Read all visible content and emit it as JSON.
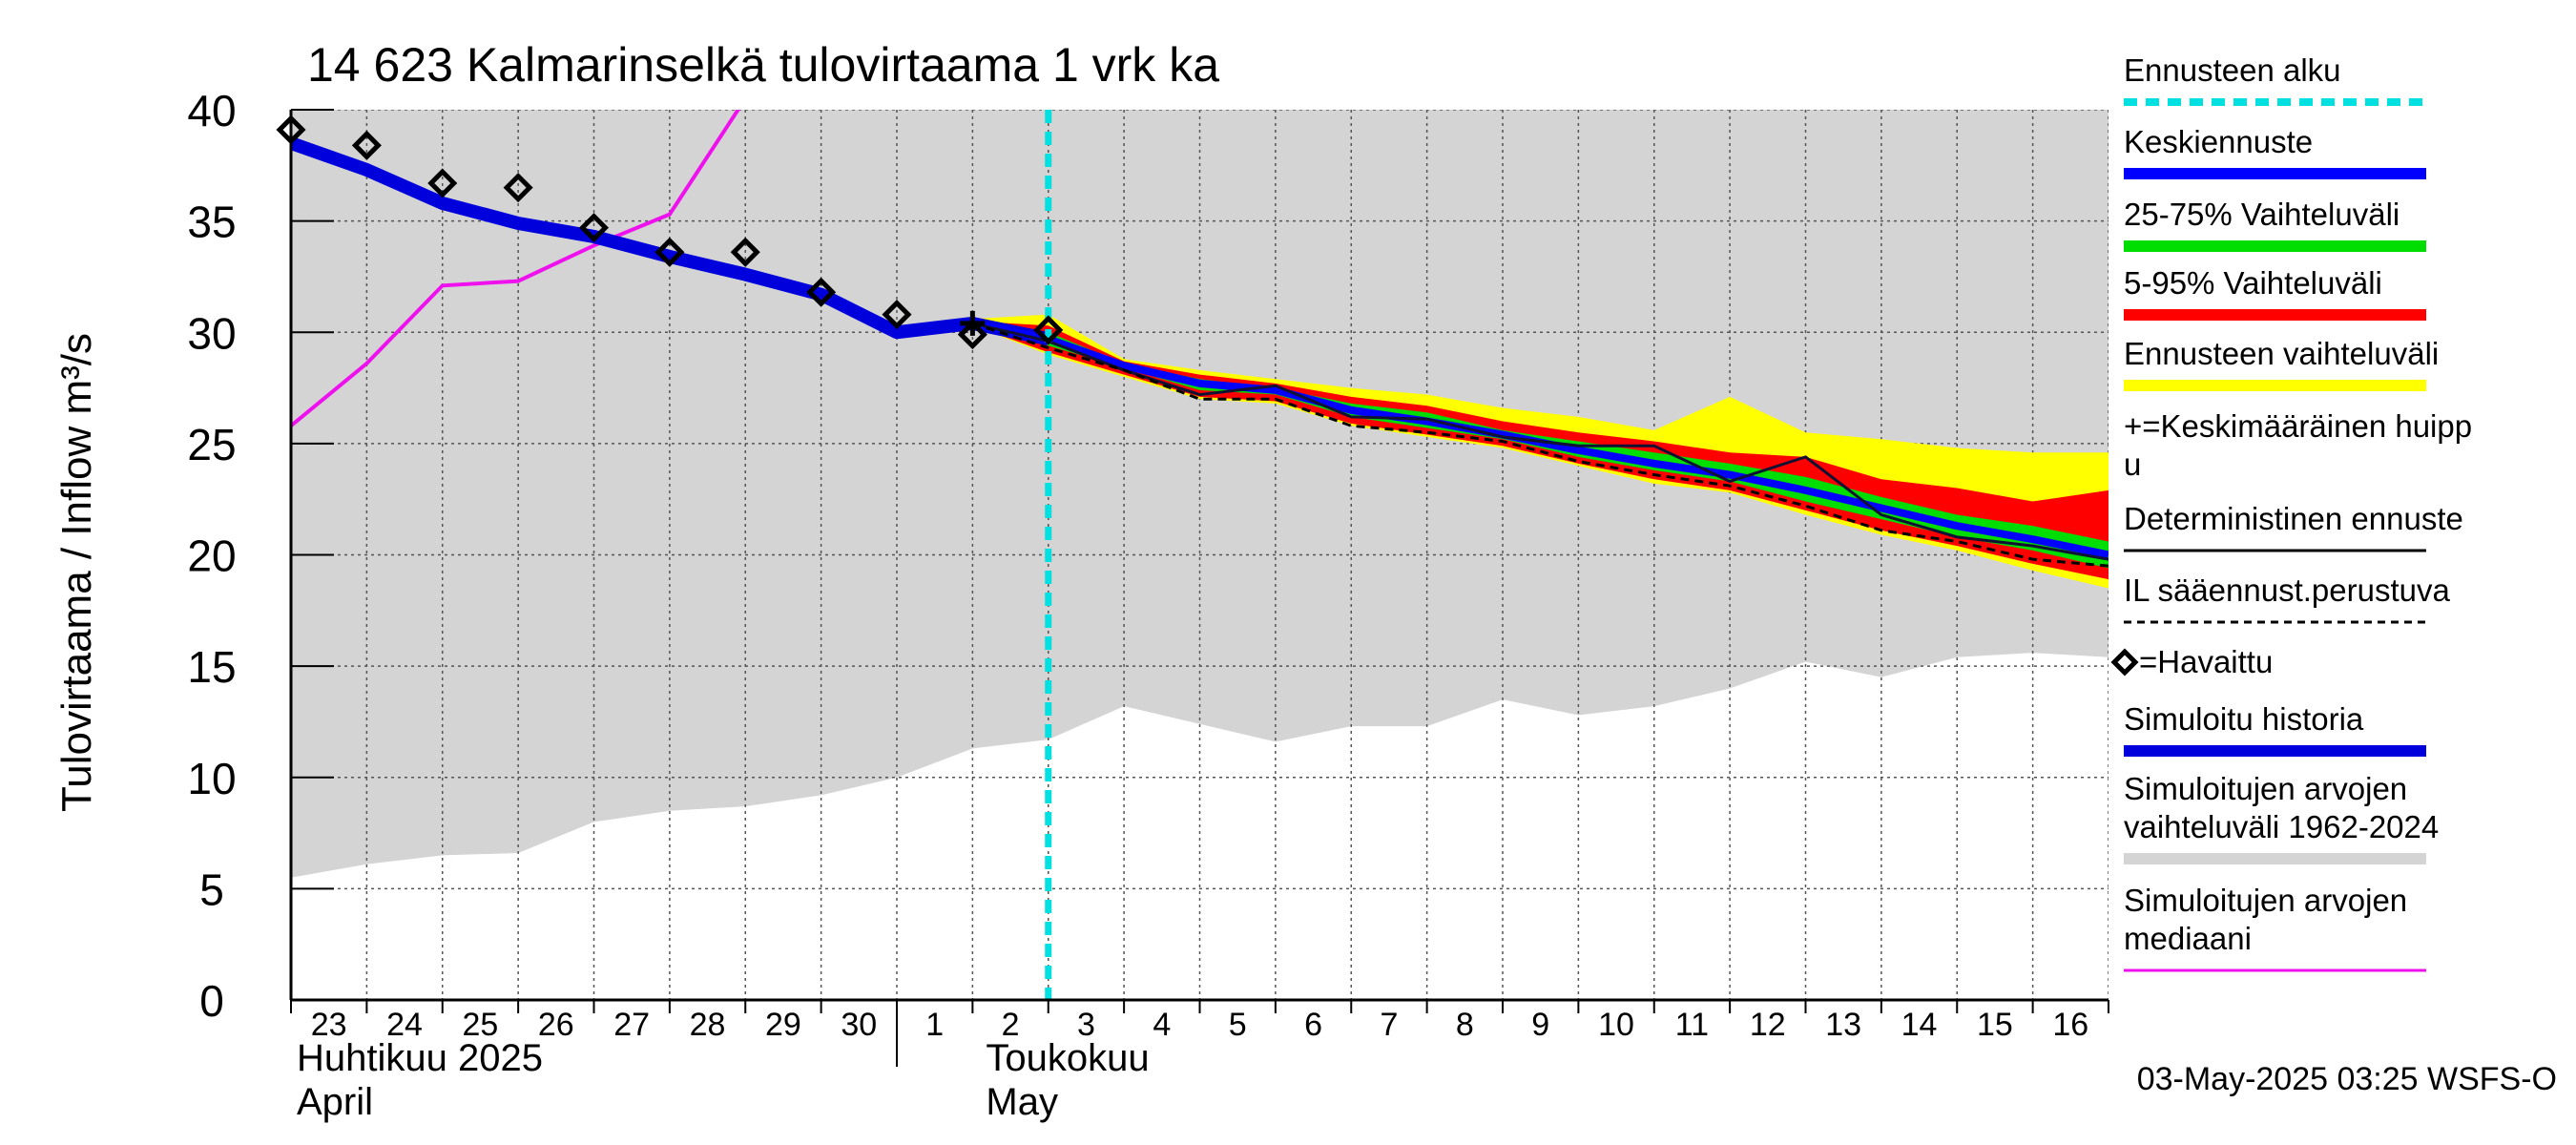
{
  "chart_data": {
    "type": "line",
    "title": "14 623 Kalmarinselkä tulovirtaama 1 vrk ka",
    "ylabel": "Tulovirtaama / Inflow    m³/s",
    "ylim": [
      0,
      40
    ],
    "yticks": [
      0,
      5,
      10,
      15,
      20,
      25,
      30,
      35,
      40
    ],
    "x_dates": [
      "2025-04-23",
      "2025-04-24",
      "2025-04-25",
      "2025-04-26",
      "2025-04-27",
      "2025-04-28",
      "2025-04-29",
      "2025-04-30",
      "2025-05-01",
      "2025-05-02",
      "2025-05-03",
      "2025-05-04",
      "2025-05-05",
      "2025-05-06",
      "2025-05-07",
      "2025-05-08",
      "2025-05-09",
      "2025-05-10",
      "2025-05-11",
      "2025-05-12",
      "2025-05-13",
      "2025-05-14",
      "2025-05-15",
      "2025-05-16",
      "2025-05-17"
    ],
    "xtick_labels": [
      "23",
      "24",
      "25",
      "26",
      "27",
      "28",
      "29",
      "30",
      "1",
      "2",
      "3",
      "4",
      "5",
      "6",
      "7",
      "8",
      "9",
      "10",
      "11",
      "12",
      "13",
      "14",
      "15",
      "16"
    ],
    "month_labels": [
      {
        "fi": "Huhtikuu  2025",
        "en": "April"
      },
      {
        "fi": "Toukokuu",
        "en": "May"
      }
    ],
    "forecast_start": "2025-05-03",
    "grid": true,
    "legend_position": "right",
    "series": [
      {
        "name": "Simuloitujen arvojen vaihteluväli 1962-2024",
        "kind": "band",
        "color": "#d4d4d4",
        "x": [
          "2025-04-23",
          "2025-04-24",
          "2025-04-25",
          "2025-04-26",
          "2025-04-27",
          "2025-04-28",
          "2025-04-29",
          "2025-04-30",
          "2025-05-01",
          "2025-05-02",
          "2025-05-03",
          "2025-05-04",
          "2025-05-05",
          "2025-05-06",
          "2025-05-07",
          "2025-05-08",
          "2025-05-09",
          "2025-05-10",
          "2025-05-11",
          "2025-05-12",
          "2025-05-13",
          "2025-05-14",
          "2025-05-15",
          "2025-05-16",
          "2025-05-17"
        ],
        "lower": [
          5.5,
          6.1,
          6.5,
          6.6,
          8.0,
          8.5,
          8.7,
          9.2,
          10.0,
          11.3,
          11.7,
          13.2,
          12.4,
          11.6,
          12.3,
          12.3,
          13.5,
          12.8,
          13.2,
          14.0,
          15.2,
          14.5,
          15.4,
          15.6,
          15.4
        ],
        "upper": [
          40,
          40,
          40,
          40,
          40,
          40,
          40,
          40,
          40,
          40,
          40,
          40,
          40,
          40,
          40,
          40,
          40,
          40,
          40,
          40,
          40,
          40,
          40,
          40,
          40
        ]
      },
      {
        "name": "Simuloitujen arvojen mediaani",
        "kind": "line",
        "color": "#ee11ee",
        "x": [
          "2025-04-23",
          "2025-04-24",
          "2025-04-25",
          "2025-04-26",
          "2025-04-27",
          "2025-04-28",
          "2025-04-29"
        ],
        "values": [
          25.8,
          28.6,
          32.1,
          32.3,
          33.9,
          35.3,
          40.5
        ]
      },
      {
        "name": "Ennusteen vaihteluväli",
        "kind": "band",
        "color": "#ffff00",
        "x": [
          "2025-05-02",
          "2025-05-03",
          "2025-05-04",
          "2025-05-05",
          "2025-05-06",
          "2025-05-07",
          "2025-05-08",
          "2025-05-09",
          "2025-05-10",
          "2025-05-11",
          "2025-05-12",
          "2025-05-13",
          "2025-05-14",
          "2025-05-15",
          "2025-05-16",
          "2025-05-17"
        ],
        "lower": [
          30.3,
          29.0,
          28.0,
          27.0,
          26.8,
          25.8,
          25.3,
          24.8,
          24.0,
          23.2,
          22.8,
          21.8,
          20.9,
          20.2,
          19.3,
          18.5
        ],
        "upper": [
          30.6,
          30.8,
          28.8,
          28.3,
          27.9,
          27.5,
          27.2,
          26.6,
          26.2,
          25.6,
          27.1,
          25.5,
          25.2,
          24.8,
          24.6,
          24.6
        ]
      },
      {
        "name": "5-95% Vaihteluväli",
        "kind": "band",
        "color": "#ff0000",
        "x": [
          "2025-05-02",
          "2025-05-03",
          "2025-05-04",
          "2025-05-05",
          "2025-05-06",
          "2025-05-07",
          "2025-05-08",
          "2025-05-09",
          "2025-05-10",
          "2025-05-11",
          "2025-05-12",
          "2025-05-13",
          "2025-05-14",
          "2025-05-15",
          "2025-05-16",
          "2025-05-17"
        ],
        "lower": [
          30.3,
          29.1,
          28.1,
          27.1,
          26.9,
          25.9,
          25.4,
          24.9,
          24.1,
          23.4,
          22.9,
          22.0,
          21.1,
          20.4,
          19.6,
          18.9
        ],
        "upper": [
          30.5,
          30.3,
          28.7,
          28.1,
          27.7,
          27.1,
          26.7,
          26.0,
          25.5,
          25.1,
          24.6,
          24.4,
          23.4,
          23.0,
          22.4,
          22.9
        ]
      },
      {
        "name": "25-75% Vaihteluväli",
        "kind": "band",
        "color": "#00dd00",
        "x": [
          "2025-05-02",
          "2025-05-03",
          "2025-05-04",
          "2025-05-05",
          "2025-05-06",
          "2025-05-07",
          "2025-05-08",
          "2025-05-09",
          "2025-05-10",
          "2025-05-11",
          "2025-05-12",
          "2025-05-13",
          "2025-05-14",
          "2025-05-15",
          "2025-05-16",
          "2025-05-17"
        ],
        "lower": [
          30.4,
          29.4,
          28.4,
          27.4,
          27.2,
          26.2,
          25.7,
          25.2,
          24.4,
          23.8,
          23.3,
          22.4,
          21.6,
          20.8,
          20.2,
          19.4
        ],
        "upper": [
          30.5,
          30.0,
          28.6,
          27.9,
          27.5,
          26.8,
          26.4,
          25.6,
          25.1,
          24.6,
          24.1,
          23.5,
          22.6,
          21.8,
          21.3,
          20.6
        ]
      },
      {
        "name": "Keskiennuste",
        "kind": "line",
        "color": "#0000ff",
        "x": [
          "2025-05-02",
          "2025-05-03",
          "2025-05-04",
          "2025-05-05",
          "2025-05-06",
          "2025-05-07",
          "2025-05-08",
          "2025-05-09",
          "2025-05-10",
          "2025-05-11",
          "2025-05-12",
          "2025-05-13",
          "2025-05-14",
          "2025-05-15",
          "2025-05-16",
          "2025-05-17"
        ],
        "values": [
          30.4,
          29.7,
          28.5,
          27.7,
          27.4,
          26.5,
          26.0,
          25.4,
          24.7,
          24.1,
          23.6,
          22.9,
          22.1,
          21.3,
          20.7,
          20.0
        ]
      },
      {
        "name": "Simuloitu historia",
        "kind": "line",
        "color": "#0000dd",
        "x": [
          "2025-04-23",
          "2025-04-24",
          "2025-04-25",
          "2025-04-26",
          "2025-04-27",
          "2025-04-28",
          "2025-04-29",
          "2025-04-30",
          "2025-05-01",
          "2025-05-02",
          "2025-05-03"
        ],
        "values": [
          38.5,
          37.3,
          35.8,
          34.9,
          34.3,
          33.4,
          32.6,
          31.7,
          30.0,
          30.4,
          29.7
        ]
      },
      {
        "name": "Deterministinen ennuste",
        "kind": "line",
        "color": "#000000",
        "x": [
          "2025-05-02",
          "2025-05-03",
          "2025-05-04",
          "2025-05-05",
          "2025-05-06",
          "2025-05-07",
          "2025-05-08",
          "2025-05-09",
          "2025-05-10",
          "2025-05-11",
          "2025-05-12",
          "2025-05-13",
          "2025-05-14",
          "2025-05-15",
          "2025-05-16",
          "2025-05-17"
        ],
        "values": [
          30.4,
          29.6,
          28.3,
          27.2,
          27.6,
          26.2,
          26.1,
          25.3,
          24.9,
          24.9,
          23.3,
          24.4,
          21.8,
          20.8,
          20.4,
          19.8
        ]
      },
      {
        "name": "IL sääennust.perustuva",
        "kind": "dashed",
        "color": "#000000",
        "x": [
          "2025-05-02",
          "2025-05-03",
          "2025-05-04",
          "2025-05-05",
          "2025-05-06",
          "2025-05-07",
          "2025-05-08",
          "2025-05-09",
          "2025-05-10",
          "2025-05-11",
          "2025-05-12",
          "2025-05-13",
          "2025-05-14",
          "2025-05-15",
          "2025-05-16",
          "2025-05-17"
        ],
        "values": [
          30.4,
          29.3,
          28.3,
          27.0,
          27.0,
          25.8,
          25.5,
          25.1,
          24.2,
          23.6,
          23.1,
          22.2,
          21.1,
          20.6,
          19.8,
          19.5
        ]
      },
      {
        "name": "=Havaittu",
        "kind": "markers",
        "color": "#000000",
        "x": [
          "2025-04-23",
          "2025-04-24",
          "2025-04-25",
          "2025-04-26",
          "2025-04-27",
          "2025-04-28",
          "2025-04-29",
          "2025-04-30",
          "2025-05-01",
          "2025-05-02",
          "2025-05-03"
        ],
        "values": [
          39.1,
          38.4,
          36.7,
          36.5,
          34.7,
          33.6,
          33.6,
          31.8,
          30.8,
          29.9,
          30.1
        ]
      },
      {
        "name": "=Keskimääräinen huippu",
        "kind": "plus",
        "color": "#000000",
        "x": [
          "2025-05-02"
        ],
        "values": [
          30.4
        ]
      }
    ],
    "legend": [
      {
        "label": "Ennusteen alku",
        "color": "#00e0e0",
        "style": "dashed-thick"
      },
      {
        "label": "Keskiennuste",
        "color": "#0000ff",
        "style": "thick"
      },
      {
        "label": "25-75% Vaihteluväli",
        "color": "#00dd00",
        "style": "thick"
      },
      {
        "label": "5-95% Vaihteluväli",
        "color": "#ff0000",
        "style": "thick"
      },
      {
        "label": "Ennusteen vaihteluväli",
        "color": "#ffff00",
        "style": "thick"
      },
      {
        "label": "+=Keskimääräinen huipp",
        "label2": "u",
        "color": "#000000",
        "style": "none"
      },
      {
        "label": "Deterministinen ennuste",
        "color": "#000000",
        "style": "thin"
      },
      {
        "label": "IL sääennust.perustuva",
        "color": "#000000",
        "style": "dashed-thin"
      },
      {
        "label": "=Havaittu",
        "color": "#000000",
        "style": "none"
      },
      {
        "label": "Simuloitu historia",
        "color": "#0000dd",
        "style": "thick"
      },
      {
        "label": "Simuloitujen arvojen",
        "label2": "vaihteluväli 1962-2024",
        "color": "#d4d4d4",
        "style": "thick"
      },
      {
        "label": "Simuloitujen arvojen",
        "label2": "mediaani",
        "color": "#ee11ee",
        "style": "thin"
      }
    ],
    "footer": "03-May-2025 03:25 WSFS-O"
  }
}
